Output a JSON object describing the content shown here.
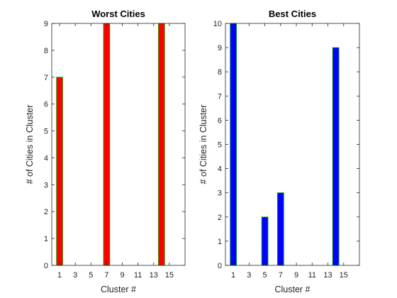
{
  "chart_data": [
    {
      "type": "bar",
      "title": "Worst Cities",
      "xlabel": "Cluster #",
      "ylabel": "# of Cities in Cluster",
      "color": "#ff0000",
      "edge_color": "#00aa00",
      "xlim": [
        0,
        17
      ],
      "ylim": [
        0,
        9
      ],
      "xticks": [
        1,
        3,
        5,
        7,
        9,
        11,
        13,
        15
      ],
      "yticks": [
        0,
        1,
        2,
        3,
        4,
        5,
        6,
        7,
        8,
        9
      ],
      "x": [
        1,
        2,
        3,
        4,
        5,
        6,
        7,
        8,
        9,
        10,
        11,
        12,
        13,
        14,
        15
      ],
      "values": [
        7,
        0,
        0,
        0,
        0,
        0,
        9,
        0,
        0,
        0,
        0,
        0,
        0,
        9,
        0
      ]
    },
    {
      "type": "bar",
      "title": "Best Cities",
      "xlabel": "Cluster #",
      "ylabel": "# of Cities in Cluster",
      "color": "#0000ff",
      "edge_color": "#00aa00",
      "xlim": [
        0,
        17
      ],
      "ylim": [
        0,
        10
      ],
      "xticks": [
        1,
        3,
        5,
        7,
        9,
        11,
        13,
        15
      ],
      "yticks": [
        0,
        1,
        2,
        3,
        4,
        5,
        6,
        7,
        8,
        9,
        10
      ],
      "x": [
        1,
        2,
        3,
        4,
        5,
        6,
        7,
        8,
        9,
        10,
        11,
        12,
        13,
        14,
        15
      ],
      "values": [
        10,
        0,
        0,
        0,
        2,
        0,
        3,
        0,
        0,
        0,
        0,
        0,
        0,
        9,
        0
      ]
    }
  ]
}
